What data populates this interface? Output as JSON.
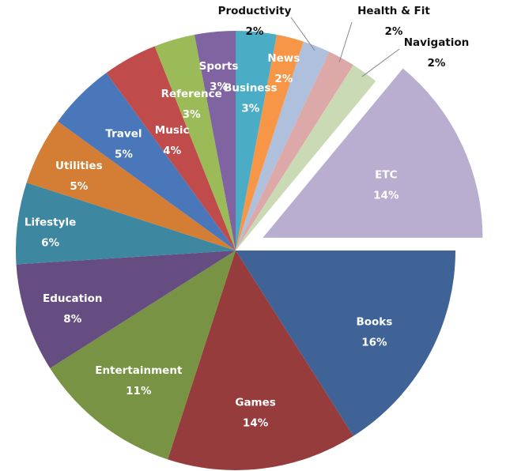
{
  "chart_data": {
    "type": "pie",
    "title": "",
    "slices": [
      {
        "label": "Books",
        "value_label": "16%",
        "value": 16,
        "color": "#3F6297"
      },
      {
        "label": "Games",
        "value_label": "14%",
        "value": 14,
        "color": "#963C3C"
      },
      {
        "label": "Entertainment",
        "value_label": "11%",
        "value": 11,
        "color": "#789343"
      },
      {
        "label": "Education",
        "value_label": "8%",
        "value": 8,
        "color": "#654D82"
      },
      {
        "label": "Lifestyle",
        "value_label": "6%",
        "value": 6,
        "color": "#3D87A0"
      },
      {
        "label": "Utilities",
        "value_label": "5%",
        "value": 5,
        "color": "#D37D35"
      },
      {
        "label": "Travel",
        "value_label": "5%",
        "value": 5,
        "color": "#4A77BA"
      },
      {
        "label": "Music",
        "value_label": "4%",
        "value": 4,
        "color": "#BF4B4B"
      },
      {
        "label": "Reference",
        "value_label": "3%",
        "value": 3,
        "color": "#9BBB58"
      },
      {
        "label": "Sports",
        "value_label": "3%",
        "value": 3,
        "color": "#8064A2"
      },
      {
        "label": "Business",
        "value_label": "3%",
        "value": 3,
        "color": "#4BACC6"
      },
      {
        "label": "News",
        "value_label": "2%",
        "value": 2,
        "color": "#F79646"
      },
      {
        "label": "Productivity",
        "value_label": "2%",
        "value": 2,
        "color": "#AFC0DC"
      },
      {
        "label": "Health & Fit",
        "value_label": "2%",
        "value": 2,
        "color": "#DCA8A8"
      },
      {
        "label": "Navigation",
        "value_label": "2%",
        "value": 2,
        "color": "#C9DAB5"
      },
      {
        "label": "ETC",
        "value_label": "14%",
        "value": 14,
        "color": "#B9AECF",
        "exploded": true
      }
    ]
  }
}
